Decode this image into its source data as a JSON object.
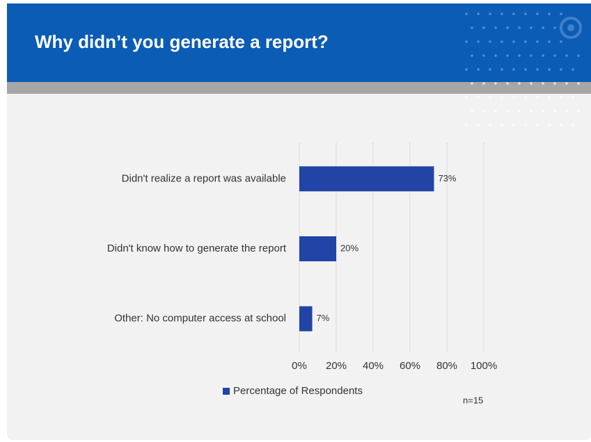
{
  "header": {
    "title": "Why didn’t you generate a report?"
  },
  "chart_data": {
    "type": "bar",
    "orientation": "horizontal",
    "categories": [
      "Didn't realize a report was available",
      "Didn't know how to generate the report",
      "Other: No computer access at school"
    ],
    "series": [
      {
        "name": "Percentage of Respondents",
        "color": "#2144a6",
        "values": [
          73,
          20,
          7
        ],
        "value_labels": [
          "73%",
          "20%",
          "7%"
        ]
      }
    ],
    "xlim": [
      0,
      100
    ],
    "xticks": [
      {
        "value": 0,
        "label": "0%"
      },
      {
        "value": 20,
        "label": "20%"
      },
      {
        "value": 40,
        "label": "40%"
      },
      {
        "value": 60,
        "label": "60%"
      },
      {
        "value": 80,
        "label": "80%"
      },
      {
        "value": 100,
        "label": "100%"
      }
    ],
    "grid": true,
    "legend": "bottom",
    "note": "n=15"
  }
}
